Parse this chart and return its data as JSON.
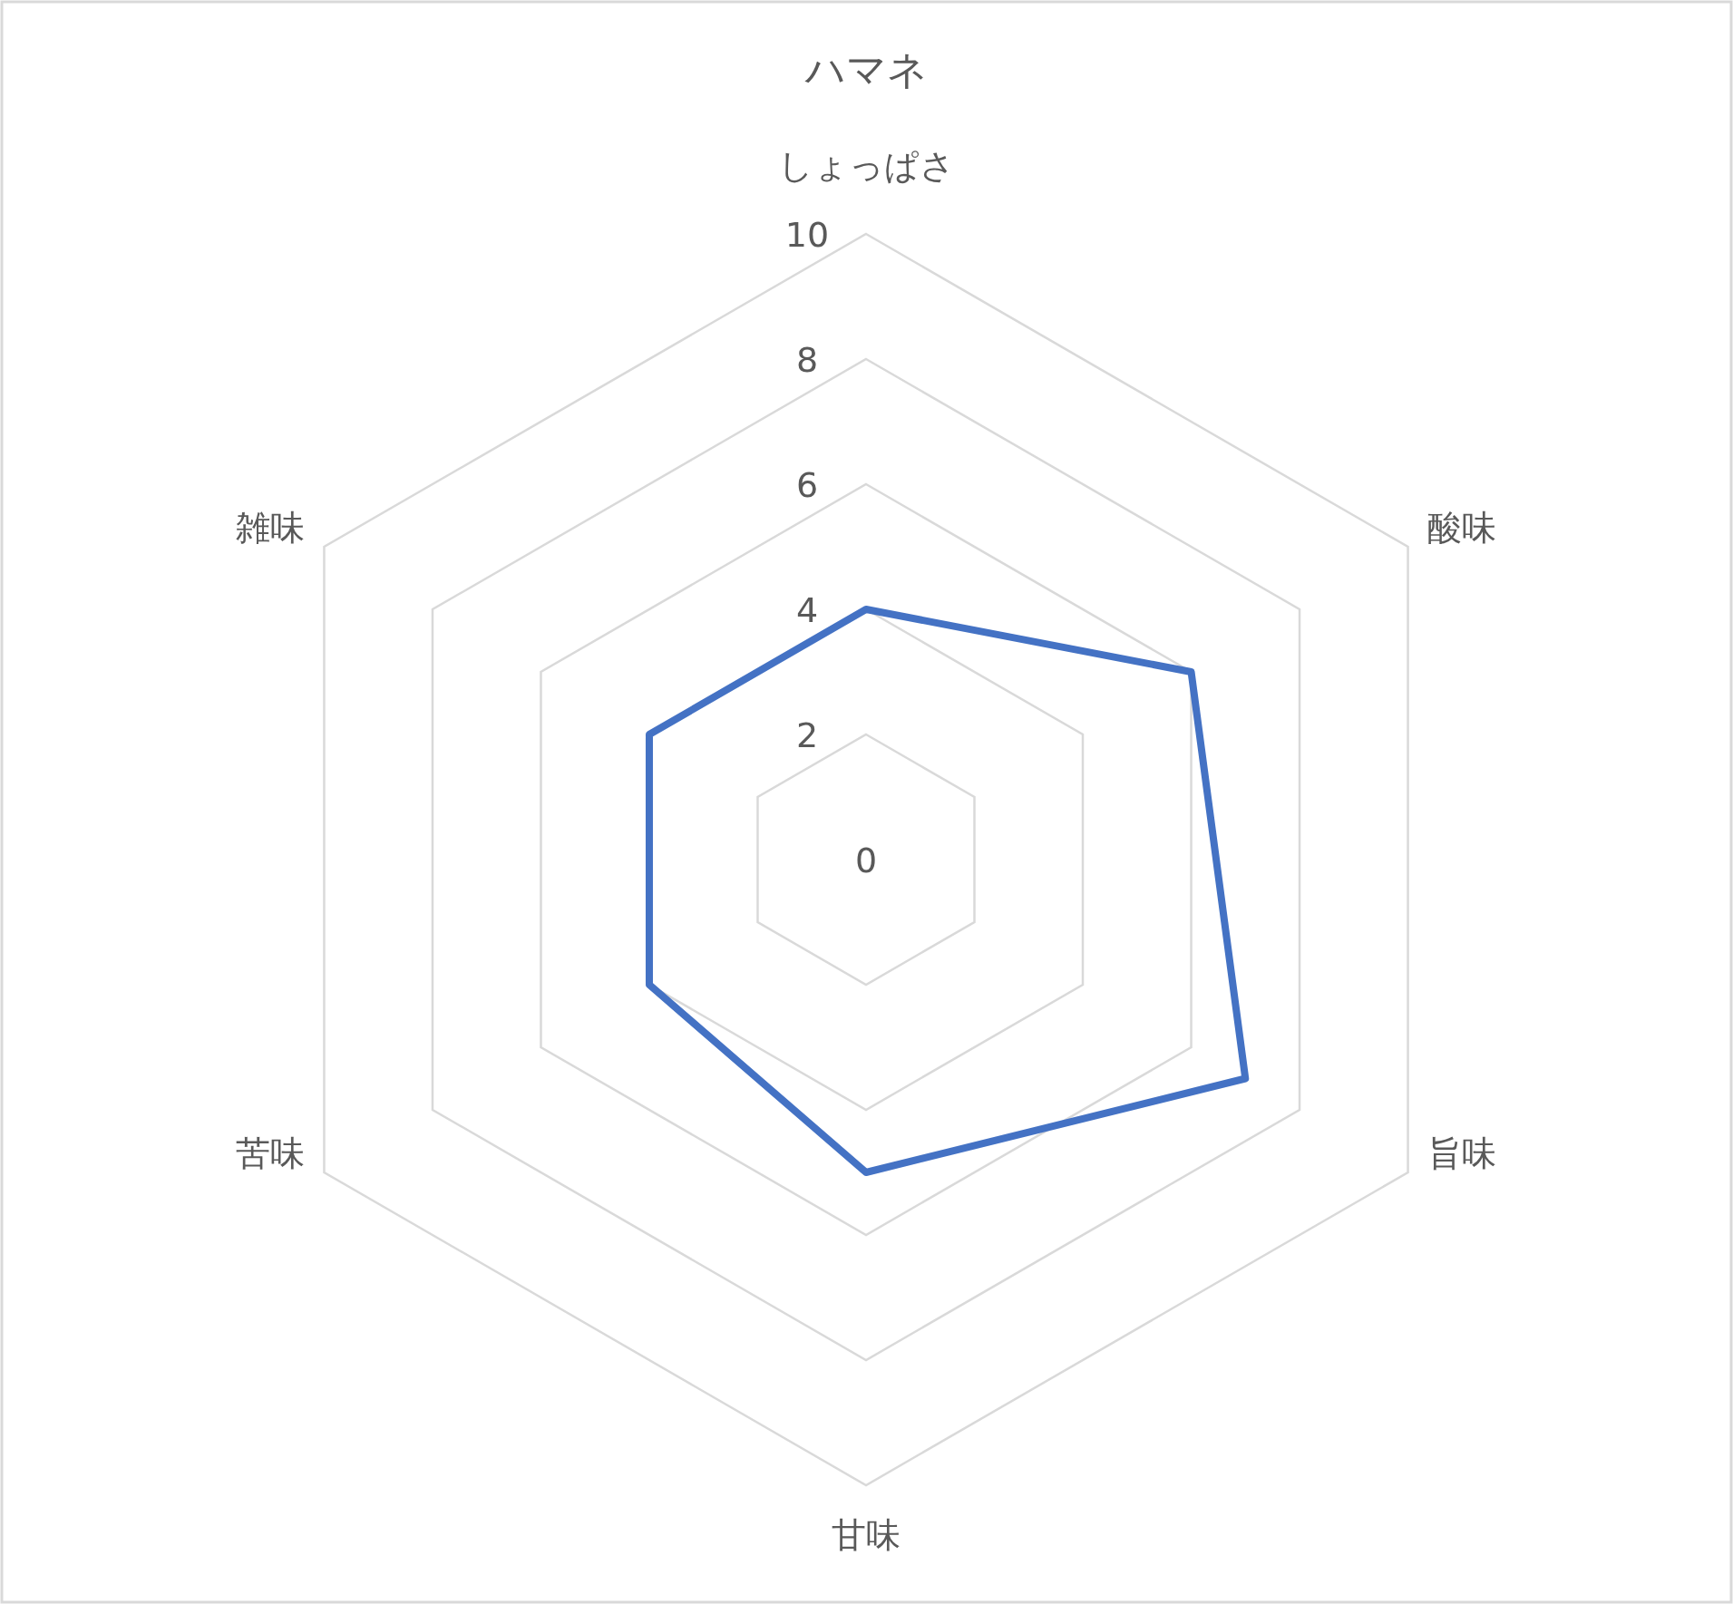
{
  "chart_data": {
    "type": "radar",
    "title": "ハマネ",
    "categories": [
      "しょっぱさ",
      "酸味",
      "旨味",
      "甘味",
      "苦味",
      "雑味"
    ],
    "series": [
      {
        "color": "#4472c4",
        "values": [
          4,
          6,
          7,
          5,
          4,
          4
        ]
      }
    ],
    "ylim": [
      0,
      10
    ],
    "yticks": [
      0,
      2,
      4,
      6,
      8,
      10
    ],
    "grid": true
  }
}
